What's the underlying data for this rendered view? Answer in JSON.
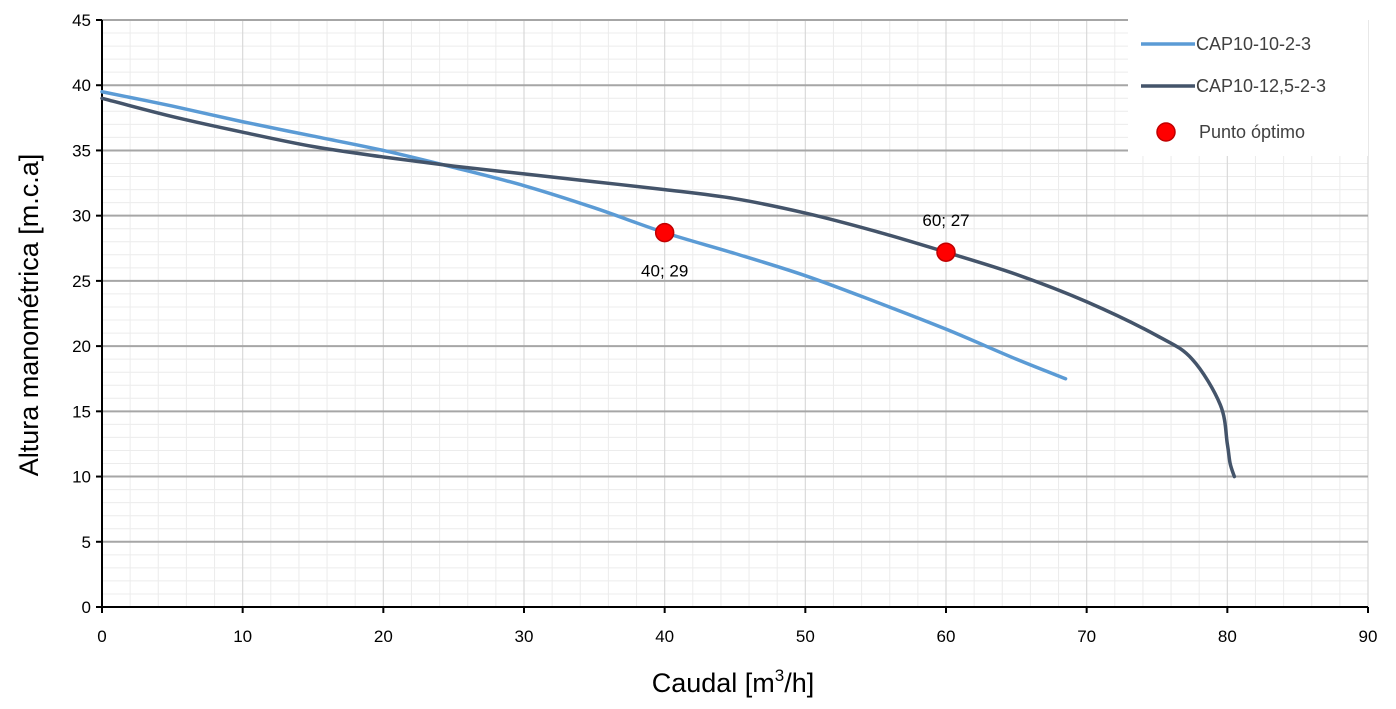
{
  "chart_data": {
    "type": "line",
    "xlabel": "Caudal [m",
    "xlabel_sup": "3",
    "xlabel_end": "/h]",
    "ylabel": "Altura manométrica [m.c.a]",
    "xlim": [
      0,
      90
    ],
    "ylim": [
      0,
      45
    ],
    "x_ticks": [
      0,
      10,
      20,
      30,
      40,
      50,
      60,
      70,
      80,
      90
    ],
    "y_ticks": [
      0,
      5,
      10,
      15,
      20,
      25,
      30,
      35,
      40,
      45
    ],
    "grid": true,
    "legend_position": "top-right",
    "series": [
      {
        "name": "CAP10-10-2-3",
        "color": "#5b9bd5",
        "x": [
          0,
          5,
          10,
          15,
          20,
          25,
          30,
          35,
          40,
          45,
          50,
          55,
          60,
          65,
          68.5
        ],
        "y": [
          39.5,
          38.4,
          37.2,
          36.1,
          35.0,
          33.7,
          32.3,
          30.6,
          28.7,
          27.1,
          25.4,
          23.4,
          21.3,
          19.0,
          17.5
        ]
      },
      {
        "name": "CAP10-12,5-2-3",
        "color": "#44546a",
        "x": [
          0,
          5,
          10,
          15,
          20,
          25,
          30,
          35,
          40,
          45,
          50,
          55,
          60,
          65,
          70,
          75,
          77.5,
          79.5,
          80,
          80.2,
          80.5
        ],
        "y": [
          39.0,
          37.6,
          36.4,
          35.3,
          34.5,
          33.8,
          33.2,
          32.6,
          32.0,
          31.3,
          30.2,
          28.8,
          27.2,
          25.5,
          23.4,
          20.8,
          19.0,
          15.5,
          12.5,
          11.0,
          10.0
        ]
      },
      {
        "name": "Punto óptimo",
        "type": "scatter",
        "color": "#ff0000",
        "points": [
          {
            "x": 40,
            "y": 28.7,
            "label": "40; 29"
          },
          {
            "x": 60,
            "y": 27.2,
            "label": "60; 27"
          }
        ]
      }
    ]
  }
}
